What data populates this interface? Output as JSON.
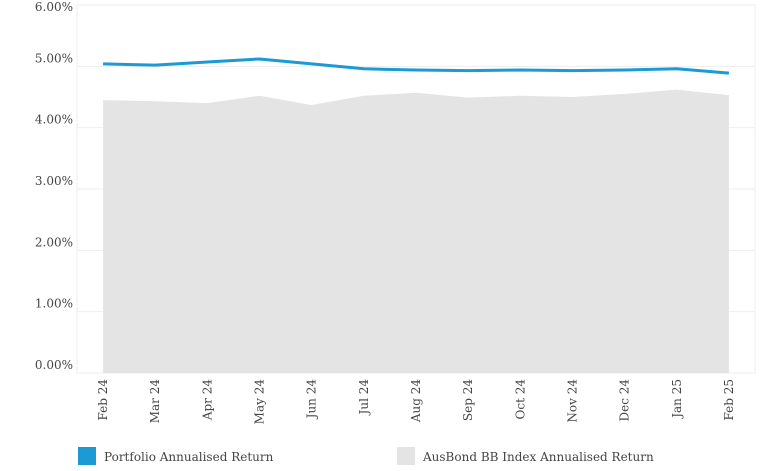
{
  "chart_data": {
    "type": "line",
    "categories": [
      "Feb 24",
      "Mar 24",
      "Apr 24",
      "May 24",
      "Jun 24",
      "Jul 24",
      "Aug 24",
      "Sep 24",
      "Oct 24",
      "Nov 24",
      "Dec 24",
      "Jan 25",
      "Feb 25"
    ],
    "series": [
      {
        "name": "Portfolio Annualised Return",
        "color": "#1b9ad6",
        "kind": "line",
        "values": [
          5.04,
          5.02,
          5.07,
          5.12,
          5.04,
          4.96,
          4.94,
          4.93,
          4.94,
          4.93,
          4.94,
          4.96,
          4.89
        ]
      },
      {
        "name": "AusBond BB Index Annualised Return",
        "color": "#e4e4e4",
        "kind": "area",
        "values": [
          4.45,
          4.43,
          4.4,
          4.52,
          4.37,
          4.52,
          4.57,
          4.49,
          4.52,
          4.5,
          4.55,
          4.62,
          4.53
        ]
      }
    ],
    "ylim": [
      0,
      6
    ],
    "yticks": [
      {
        "value": 0,
        "label": "0.00%"
      },
      {
        "value": 1,
        "label": "1.00%"
      },
      {
        "value": 2,
        "label": "2.00%"
      },
      {
        "value": 3,
        "label": "3.00%"
      },
      {
        "value": 4,
        "label": "4.00%"
      },
      {
        "value": 5,
        "label": "5.00%"
      },
      {
        "value": 6,
        "label": "6.00%"
      }
    ],
    "grid": true
  }
}
